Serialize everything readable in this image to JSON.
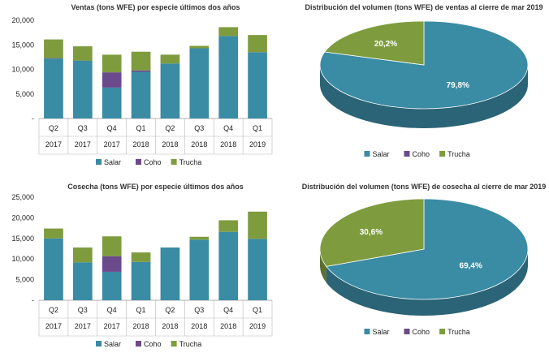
{
  "colors": {
    "Salar": "#3a8ba4",
    "Coho": "#6b4a8c",
    "Trucha": "#7e9c3e"
  },
  "chart_data": [
    {
      "type": "bar",
      "stacked": true,
      "title": "Ventas (tons WFE) por especie últimos dos años",
      "quarters": [
        "Q2",
        "Q3",
        "Q4",
        "Q1",
        "Q2",
        "Q3",
        "Q4",
        "Q1"
      ],
      "years": [
        "2017",
        "2017",
        "2017",
        "2018",
        "2018",
        "2018",
        "2018",
        "2019"
      ],
      "ylim": [
        0,
        20000
      ],
      "yticks": [
        "-",
        "5,000",
        "10,000",
        "15,000",
        "20,000"
      ],
      "series": [
        {
          "name": "Salar",
          "values": [
            12200,
            11800,
            6300,
            9500,
            11200,
            14300,
            16800,
            13500
          ]
        },
        {
          "name": "Coho",
          "values": [
            100,
            0,
            3100,
            300,
            0,
            0,
            0,
            0
          ]
        },
        {
          "name": "Trucha",
          "values": [
            3800,
            2900,
            3600,
            3800,
            1800,
            500,
            1800,
            3500
          ]
        }
      ],
      "legend": [
        "Salar",
        "Coho",
        "Trucha"
      ]
    },
    {
      "type": "pie",
      "title": "Distribución del volumen (tons WFE) de ventas al cierre de mar 2019",
      "slices": [
        {
          "name": "Salar",
          "value": 79.8,
          "label": "79,8%"
        },
        {
          "name": "Trucha",
          "value": 20.2,
          "label": "20,2%"
        }
      ],
      "legend": [
        "Salar",
        "Coho",
        "Trucha"
      ]
    },
    {
      "type": "bar",
      "stacked": true,
      "title": "Cosecha  (tons WFE) por especie últimos dos años",
      "quarters": [
        "Q2",
        "Q3",
        "Q4",
        "Q1",
        "Q2",
        "Q3",
        "Q4",
        "Q1"
      ],
      "years": [
        "2017",
        "2017",
        "2017",
        "2018",
        "2018",
        "2018",
        "2018",
        "2019"
      ],
      "ylim": [
        0,
        25000
      ],
      "yticks": [
        "-",
        "5,000",
        "10,000",
        "15,000",
        "20,000",
        "25,000"
      ],
      "series": [
        {
          "name": "Salar",
          "values": [
            15000,
            9200,
            6900,
            9300,
            12800,
            14700,
            16600,
            14900
          ]
        },
        {
          "name": "Coho",
          "values": [
            0,
            0,
            3800,
            0,
            0,
            0,
            0,
            0
          ]
        },
        {
          "name": "Trucha",
          "values": [
            2400,
            3600,
            4800,
            2300,
            0,
            700,
            2800,
            6600
          ]
        }
      ],
      "legend": [
        "Salar",
        "Coho",
        "Trucha"
      ]
    },
    {
      "type": "pie",
      "title": "Distribución del volumen (tons WFE) de cosecha al cierre de mar 2019",
      "slices": [
        {
          "name": "Salar",
          "value": 69.4,
          "label": "69,4%"
        },
        {
          "name": "Trucha",
          "value": 30.6,
          "label": "30,6%"
        }
      ],
      "legend": [
        "Salar",
        "Coho",
        "Trucha"
      ]
    }
  ]
}
